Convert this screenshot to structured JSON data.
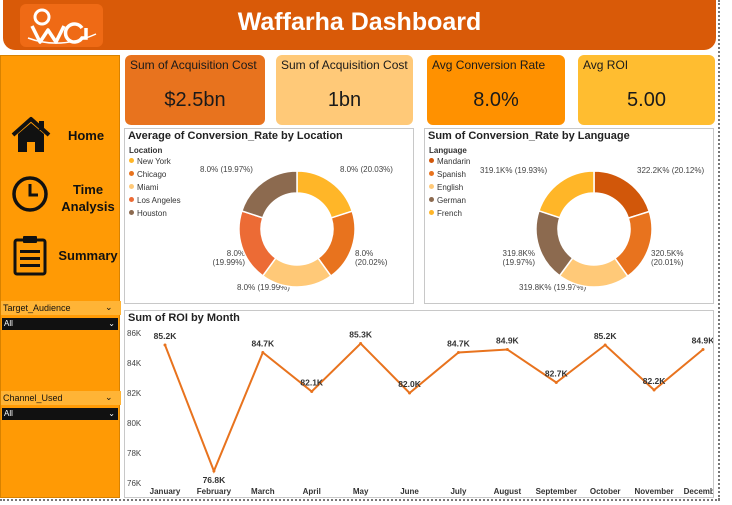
{
  "header": {
    "title": "Waffarha Dashboard",
    "logo_icon": "waffarha-logo"
  },
  "sidebar": {
    "nav": [
      {
        "label": "Home",
        "icon": "home-icon"
      },
      {
        "label": "Time Analysis",
        "icon": "clock-icon"
      },
      {
        "label": "Summary",
        "icon": "clipboard-icon"
      }
    ],
    "filters": [
      {
        "label": "Target_Audience",
        "value": "All"
      },
      {
        "label": "Channel_Used",
        "value": "All"
      }
    ]
  },
  "kpis": [
    {
      "label": "Sum of Acquisition Cost",
      "value": "$2.5bn",
      "color": "#e8731e"
    },
    {
      "label": "Sum of Acquisition Cost",
      "value": "1bn",
      "color": "#ffc978"
    },
    {
      "label": "Avg Conversion Rate",
      "value": "8.0%",
      "color": "#ff9100"
    },
    {
      "label": "Avg ROI",
      "value": "5.00",
      "color": "#ffbd30"
    }
  ],
  "chart_data": [
    {
      "type": "pie",
      "title": "Average of Conversion_Rate by Location",
      "legend_title": "Location",
      "legend_position": "left",
      "labels": [
        "New York",
        "Chicago",
        "Miami",
        "Los Angeles",
        "Houston"
      ],
      "values": [
        20.03,
        20.02,
        19.99,
        19.99,
        19.97
      ],
      "slice_labels": [
        "8.0% (20.03%)",
        "8.0% (20.02%)",
        "8.0% (19.99%)",
        "8.0% (19.99%)",
        "8.0% (19.97%)"
      ],
      "colors": [
        "#ffb628",
        "#e8731e",
        "#ffc978",
        "#ec6b35",
        "#8c6a4f"
      ]
    },
    {
      "type": "pie",
      "title": "Sum of Conversion_Rate by Language",
      "legend_title": "Language",
      "legend_position": "left",
      "labels": [
        "Mandarin",
        "Spanish",
        "English",
        "German",
        "French"
      ],
      "values": [
        20.12,
        20.01,
        19.97,
        19.97,
        19.93
      ],
      "slice_labels": [
        "322.2K% (20.12%)",
        "320.5K% (20.01%)",
        "319.8K% (19.97%)",
        "319.8K% (19.97%)",
        "319.1K% (19.93%)"
      ],
      "colors": [
        "#d1570a",
        "#e8731e",
        "#ffc978",
        "#8c6a4f",
        "#ffb628"
      ]
    },
    {
      "type": "line",
      "title": "Sum of ROI by Month",
      "categories": [
        "January",
        "February",
        "March",
        "April",
        "May",
        "June",
        "July",
        "August",
        "September",
        "October",
        "November",
        "December"
      ],
      "values": [
        85.2,
        76.8,
        84.7,
        82.1,
        85.3,
        82.0,
        84.7,
        84.9,
        82.7,
        85.2,
        82.2,
        84.9
      ],
      "data_labels": [
        "85.2K",
        "76.8K",
        "84.7K",
        "82.1K",
        "85.3K",
        "82.0K",
        "84.7K",
        "84.9K",
        "82.7K",
        "85.2K",
        "82.2K",
        "84.9K"
      ],
      "ylim": [
        76,
        86
      ],
      "yticks": [
        "76K",
        "78K",
        "80K",
        "82K",
        "84K",
        "86K"
      ],
      "line_color": "#e8731e",
      "grid": false
    }
  ]
}
